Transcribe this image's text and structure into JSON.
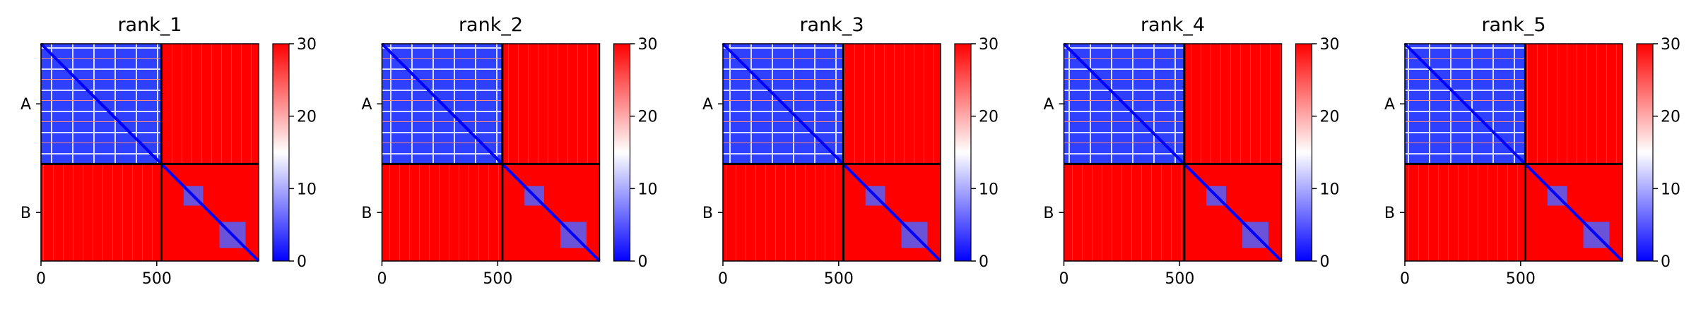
{
  "chart_data": {
    "type": "heatmap",
    "colormap": "bwr",
    "colors": {
      "low": "#0000ff",
      "mid": "#ffffff",
      "high": "#ff0000",
      "divider": "#000000"
    },
    "chain_break": 520,
    "x_range": [
      0,
      940
    ],
    "row_ticks": [
      "A",
      "B"
    ],
    "x_ticks": [
      0,
      500
    ],
    "colorbar": {
      "range": [
        0,
        30
      ],
      "ticks": [
        0,
        10,
        20,
        30
      ]
    },
    "panels": [
      {
        "title": "rank_1"
      },
      {
        "title": "rank_2"
      },
      {
        "title": "rank_3"
      },
      {
        "title": "rank_4"
      },
      {
        "title": "rank_5"
      }
    ]
  }
}
